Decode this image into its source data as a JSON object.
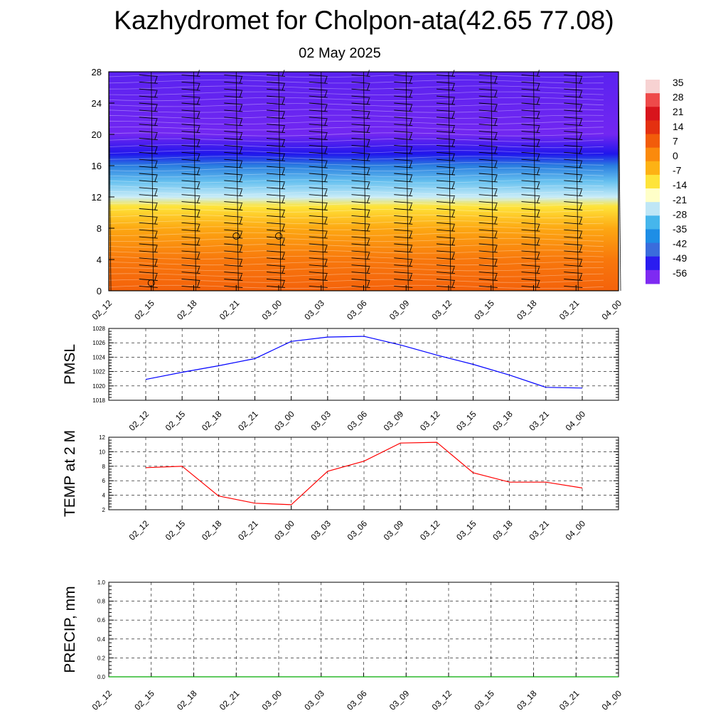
{
  "title": "Kazhydromet for Cholpon-ata(42.65 77.08)",
  "subtitle": "02 May 2025",
  "chart_data": [
    {
      "type": "heatmap",
      "name": "temperature-wind-profile",
      "x_ticks": [
        "02_12",
        "02_15",
        "02_18",
        "02_21",
        "03_00",
        "03_03",
        "03_06",
        "03_09",
        "03_12",
        "03_15",
        "03_18",
        "03_21",
        "04_00"
      ],
      "y_ticks": [
        0,
        4,
        8,
        12,
        16,
        20,
        24,
        28
      ],
      "ylim": [
        0,
        28
      ],
      "colorbar_labels": [
        "35",
        "28",
        "21",
        "14",
        "7",
        "0",
        "-7",
        "-14",
        "-21",
        "-28",
        "-35",
        "-42",
        "-49",
        "-56"
      ],
      "colorbar_colors": [
        "#f7d2d2",
        "#ee4a4a",
        "#d8141c",
        "#e43010",
        "#f25c0a",
        "#fb8a0c",
        "#fdb214",
        "#fee43a",
        "#ffffc8",
        "#bfe6f6",
        "#46b6ec",
        "#1e8ee6",
        "#3a6cdc",
        "#2a1cf0",
        "#7e2af2"
      ],
      "temperature_profile": [
        {
          "height": 0,
          "value": 8
        },
        {
          "height": 4,
          "value": 3
        },
        {
          "height": 8,
          "value": -3
        },
        {
          "height": 10.8,
          "value": -8
        },
        {
          "height": 12,
          "value": -16
        },
        {
          "height": 14,
          "value": -24
        },
        {
          "height": 16,
          "value": -38
        },
        {
          "height": 17.5,
          "value": -52
        },
        {
          "height": 20,
          "value": -58
        },
        {
          "height": 28,
          "value": -56
        }
      ],
      "calm_markers": [
        {
          "x": "02_15",
          "height": 1
        },
        {
          "x": "02_21",
          "height": 7
        },
        {
          "x": "03_00",
          "height": 7
        }
      ]
    },
    {
      "type": "line",
      "name": "PMSL",
      "ylabel": "PMSL",
      "x_ticks": [
        "02_12",
        "02_15",
        "02_18",
        "02_21",
        "03_00",
        "03_03",
        "03_06",
        "03_09",
        "03_12",
        "03_15",
        "03_18",
        "03_21",
        "04_00"
      ],
      "y_ticks": [
        "1018",
        "1020",
        "1022",
        "1024",
        "1026",
        "1028"
      ],
      "ylim": [
        1018,
        1028
      ],
      "color": "#0000ff",
      "values": [
        1020.9,
        1021.9,
        1022.8,
        1023.8,
        1026.2,
        1026.8,
        1026.9,
        1025.7,
        1024.3,
        1023.0,
        1021.5,
        1019.8,
        1019.7
      ]
    },
    {
      "type": "line",
      "name": "TEMP at 2 M",
      "ylabel": "TEMP at 2 M",
      "x_ticks": [
        "02_12",
        "02_15",
        "02_18",
        "02_21",
        "03_00",
        "03_03",
        "03_06",
        "03_09",
        "03_12",
        "03_15",
        "03_18",
        "03_21",
        "04_00"
      ],
      "y_ticks": [
        "2",
        "4",
        "6",
        "8",
        "10",
        "12"
      ],
      "ylim": [
        2,
        12
      ],
      "color": "#ff0000",
      "values": [
        7.8,
        8.0,
        3.9,
        2.9,
        2.7,
        7.3,
        8.7,
        11.2,
        11.3,
        7.1,
        5.8,
        5.8,
        5.0
      ]
    },
    {
      "type": "line",
      "name": "PRECIP, mm",
      "ylabel": "PRECIP, mm",
      "x_ticks": [
        "02_12",
        "02_15",
        "02_18",
        "02_21",
        "03_00",
        "03_03",
        "03_06",
        "03_09",
        "03_12",
        "03_15",
        "03_18",
        "03_21",
        "04_00"
      ],
      "y_ticks": [
        "0.0",
        "0.2",
        "0.4",
        "0.6",
        "0.8",
        "1.0"
      ],
      "ylim": [
        0,
        1
      ],
      "color": "#00aa00",
      "values": [
        0,
        0,
        0,
        0,
        0,
        0,
        0,
        0,
        0,
        0,
        0,
        0,
        0
      ]
    }
  ]
}
